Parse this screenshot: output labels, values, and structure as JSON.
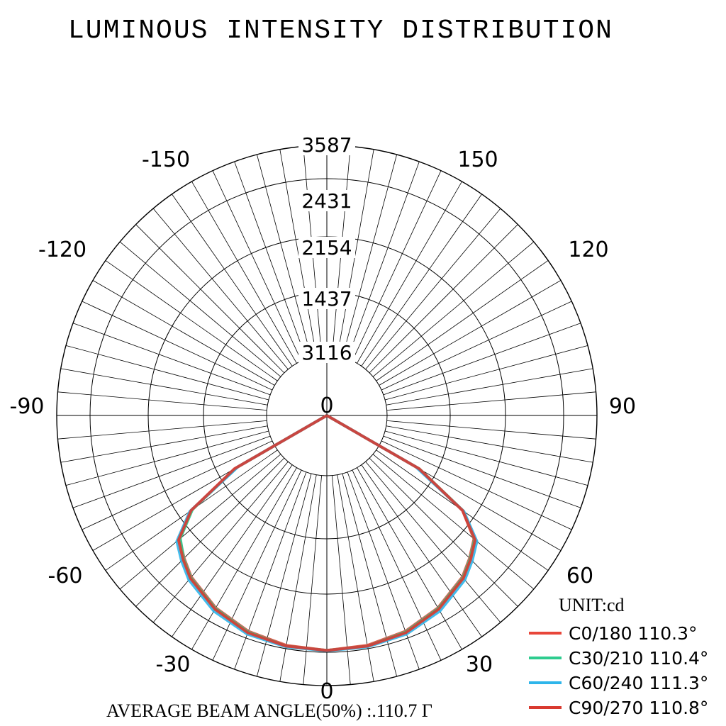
{
  "chart_data": {
    "type": "polar",
    "title": "LUMINOUS INTENSITY DISTRIBUTION",
    "unit_label": "UNIT:cd",
    "radial_ticks": [
      "3587",
      "2431",
      "2154",
      "1437",
      "3116"
    ],
    "angle_labels": [
      "0",
      "30",
      "60",
      "90",
      "120",
      "150",
      "-150",
      "-120",
      "-90",
      "-60",
      "-30",
      "0"
    ],
    "grid": true,
    "legend_position": "bottom-right",
    "footer": "AVERAGE BEAM ANGLE(50%) :.110.7 Γ",
    "series": [
      {
        "name": "C0/180 110.3°",
        "color": "#e8463a",
        "angles": [
          -180,
          -90,
          -60,
          -55,
          -50,
          -45,
          -40,
          -30,
          -20,
          -10,
          0,
          10,
          20,
          30,
          40,
          45,
          50,
          55,
          60,
          90,
          180
        ],
        "values": [
          0,
          0,
          1400,
          2200,
          2550,
          2680,
          2800,
          2950,
          3050,
          3100,
          3120,
          3100,
          3050,
          2950,
          2800,
          2680,
          2550,
          2200,
          1400,
          0,
          0
        ]
      },
      {
        "name": "C30/210 110.4°",
        "color": "#2ecc8f",
        "angles": [
          -180,
          -90,
          -60,
          -55,
          -50,
          -45,
          -40,
          -30,
          -20,
          -10,
          0,
          10,
          20,
          30,
          40,
          45,
          50,
          55,
          60,
          90,
          180
        ],
        "values": [
          0,
          0,
          1380,
          2180,
          2540,
          2690,
          2810,
          2960,
          3060,
          3110,
          3120,
          3110,
          3060,
          2960,
          2810,
          2690,
          2560,
          2220,
          1420,
          0,
          0
        ]
      },
      {
        "name": "C60/240 111.3°",
        "color": "#2eb5ea",
        "angles": [
          -180,
          -90,
          -60,
          -55,
          -50,
          -45,
          -40,
          -30,
          -20,
          -10,
          0,
          10,
          20,
          30,
          40,
          45,
          50,
          55,
          60,
          90,
          180
        ],
        "values": [
          0,
          0,
          1360,
          2220,
          2600,
          2730,
          2850,
          3000,
          3090,
          3120,
          3125,
          3120,
          3090,
          3000,
          2850,
          2730,
          2600,
          2220,
          1360,
          0,
          0
        ]
      },
      {
        "name": "C90/270 110.8°",
        "color": "#d93a30",
        "angles": [
          -180,
          -90,
          -60,
          -55,
          -50,
          -45,
          -40,
          -30,
          -20,
          -10,
          0,
          10,
          20,
          30,
          40,
          45,
          50,
          55,
          60,
          90,
          180
        ],
        "values": [
          0,
          0,
          1420,
          2200,
          2570,
          2700,
          2820,
          2970,
          3070,
          3110,
          3120,
          3110,
          3070,
          2970,
          2820,
          2700,
          2570,
          2200,
          1420,
          0,
          0
        ]
      }
    ]
  }
}
